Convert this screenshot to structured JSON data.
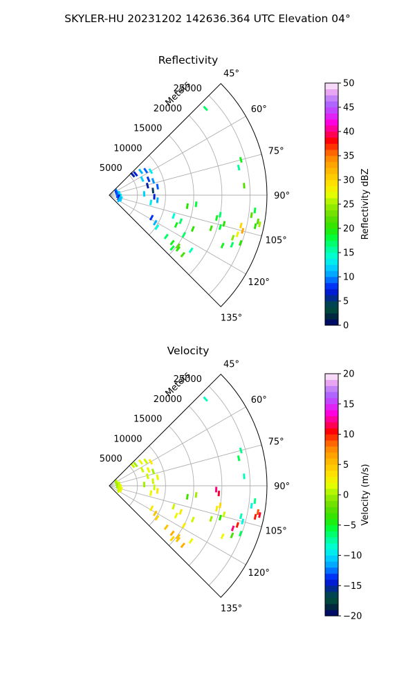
{
  "figure": {
    "suptitle": "SKYLER-HU  20231202  142636.364 UTC Elevation 04°"
  },
  "chart_data": [
    {
      "type": "scatter",
      "subtype": "polar-sector",
      "title": "Reflectivity",
      "range_label": "Meters",
      "azimuth_ticks": [
        "45°",
        "60°",
        "75°",
        "90°",
        "105°",
        "120°",
        "135°"
      ],
      "azimuth_range_deg": [
        45,
        135
      ],
      "range_ticks": [
        5000,
        10000,
        15000,
        20000,
        25000
      ],
      "range_max": 28000,
      "grid": true,
      "colorbar": {
        "label": "Reflectivity dBZ",
        "min": 0,
        "max": 50,
        "ticks": [
          "0",
          "5",
          "10",
          "15",
          "20",
          "25",
          "30",
          "35",
          "40",
          "45",
          "50"
        ]
      },
      "cells": [
        {
          "az": 48,
          "r": 23000,
          "v": 17
        },
        {
          "az": 49,
          "r": 5500,
          "v": 6
        },
        {
          "az": 51,
          "r": 6000,
          "v": 7
        },
        {
          "az": 53,
          "r": 7000,
          "v": 11
        },
        {
          "az": 56,
          "r": 7800,
          "v": 9
        },
        {
          "az": 60,
          "r": 8500,
          "v": 13
        },
        {
          "az": 64,
          "r": 6500,
          "v": 12
        },
        {
          "az": 68,
          "r": 7500,
          "v": 8
        },
        {
          "az": 72,
          "r": 8200,
          "v": 10
        },
        {
          "az": 76,
          "r": 7000,
          "v": 6
        },
        {
          "az": 80,
          "r": 8700,
          "v": 9
        },
        {
          "az": 84,
          "r": 7800,
          "v": 5
        },
        {
          "az": 88,
          "r": 6200,
          "v": 12
        },
        {
          "az": 92,
          "r": 8000,
          "v": 7
        },
        {
          "az": 96,
          "r": 8600,
          "v": 11
        },
        {
          "az": 100,
          "r": 7500,
          "v": 13
        },
        {
          "az": 62,
          "r": 1500,
          "v": 10
        },
        {
          "az": 72,
          "r": 1300,
          "v": 8
        },
        {
          "az": 82,
          "r": 1800,
          "v": 12
        },
        {
          "az": 90,
          "r": 1400,
          "v": 9
        },
        {
          "az": 96,
          "r": 2000,
          "v": 13
        },
        {
          "az": 102,
          "r": 1700,
          "v": 7
        },
        {
          "az": 108,
          "r": 2200,
          "v": 12
        },
        {
          "az": 114,
          "r": 1900,
          "v": 11
        },
        {
          "az": 118,
          "r": 8500,
          "v": 8
        },
        {
          "az": 121,
          "r": 9500,
          "v": 11
        },
        {
          "az": 124,
          "r": 10200,
          "v": 14
        },
        {
          "az": 126,
          "r": 12500,
          "v": 17
        },
        {
          "az": 127,
          "r": 14000,
          "v": 19
        },
        {
          "az": 128,
          "r": 15500,
          "v": 20
        },
        {
          "az": 129,
          "r": 16800,
          "v": 21
        },
        {
          "az": 130,
          "r": 14600,
          "v": 18
        },
        {
          "az": 126.5,
          "r": 15200,
          "v": 22
        },
        {
          "az": 124,
          "r": 17500,
          "v": 15
        },
        {
          "az": 118,
          "r": 15000,
          "v": 17
        },
        {
          "az": 112,
          "r": 16000,
          "v": 20
        },
        {
          "az": 100,
          "r": 20000,
          "v": 17
        },
        {
          "az": 102,
          "r": 19500,
          "v": 19
        },
        {
          "az": 104,
          "r": 21000,
          "v": 20
        },
        {
          "az": 106,
          "r": 20500,
          "v": 18
        },
        {
          "az": 108,
          "r": 19000,
          "v": 21
        },
        {
          "az": 103,
          "r": 24000,
          "v": 30
        },
        {
          "az": 105,
          "r": 24500,
          "v": 33
        },
        {
          "az": 107,
          "r": 23800,
          "v": 28
        },
        {
          "az": 109,
          "r": 23200,
          "v": 24
        },
        {
          "az": 110,
          "r": 24800,
          "v": 20
        },
        {
          "az": 112,
          "r": 23500,
          "v": 17
        },
        {
          "az": 114,
          "r": 22000,
          "v": 19
        },
        {
          "az": 100,
          "r": 26800,
          "v": 22
        },
        {
          "az": 101,
          "r": 27200,
          "v": 25
        },
        {
          "az": 102,
          "r": 26500,
          "v": 20
        },
        {
          "az": 96,
          "r": 26000,
          "v": 18
        },
        {
          "az": 98,
          "r": 25500,
          "v": 22
        },
        {
          "az": 86,
          "r": 24000,
          "v": 22
        },
        {
          "az": 78,
          "r": 23500,
          "v": 16
        },
        {
          "az": 75,
          "r": 24200,
          "v": 19
        },
        {
          "az": 108,
          "r": 12000,
          "v": 14
        },
        {
          "az": 110,
          "r": 13500,
          "v": 17
        },
        {
          "az": 114,
          "r": 13000,
          "v": 19
        },
        {
          "az": 98,
          "r": 14000,
          "v": 20
        },
        {
          "az": 96,
          "r": 15500,
          "v": 18
        }
      ]
    },
    {
      "type": "scatter",
      "subtype": "polar-sector",
      "title": "Velocity",
      "range_label": "Meters",
      "azimuth_ticks": [
        "45°",
        "60°",
        "75°",
        "90°",
        "105°",
        "120°",
        "135°"
      ],
      "azimuth_range_deg": [
        45,
        135
      ],
      "range_ticks": [
        5000,
        10000,
        15000,
        20000,
        25000
      ],
      "range_max": 28000,
      "grid": true,
      "colorbar": {
        "label": "Velocity (m/s)",
        "min": -20,
        "max": 20,
        "ticks": [
          "−20",
          "−15",
          "−10",
          "−5",
          "0",
          "5",
          "10",
          "15",
          "20"
        ]
      },
      "cells": [
        {
          "az": 48,
          "r": 23000,
          "v": -8
        },
        {
          "az": 49,
          "r": 5500,
          "v": 1
        },
        {
          "az": 51,
          "r": 6000,
          "v": 0
        },
        {
          "az": 53,
          "r": 7000,
          "v": 2
        },
        {
          "az": 56,
          "r": 7800,
          "v": 1
        },
        {
          "az": 60,
          "r": 8500,
          "v": 3
        },
        {
          "az": 64,
          "r": 6500,
          "v": 1
        },
        {
          "az": 68,
          "r": 7500,
          "v": 2
        },
        {
          "az": 72,
          "r": 8200,
          "v": 0
        },
        {
          "az": 76,
          "r": 7000,
          "v": 1
        },
        {
          "az": 80,
          "r": 8700,
          "v": 2
        },
        {
          "az": 84,
          "r": 7800,
          "v": 1
        },
        {
          "az": 88,
          "r": 6200,
          "v": 0
        },
        {
          "az": 92,
          "r": 8000,
          "v": 1
        },
        {
          "az": 96,
          "r": 8600,
          "v": 3
        },
        {
          "az": 100,
          "r": 7500,
          "v": 2
        },
        {
          "az": 62,
          "r": 1500,
          "v": 1
        },
        {
          "az": 72,
          "r": 1300,
          "v": 0
        },
        {
          "az": 82,
          "r": 1800,
          "v": 1
        },
        {
          "az": 90,
          "r": 1400,
          "v": 0
        },
        {
          "az": 96,
          "r": 2000,
          "v": 2
        },
        {
          "az": 102,
          "r": 1700,
          "v": 1
        },
        {
          "az": 108,
          "r": 2200,
          "v": 2
        },
        {
          "az": 114,
          "r": 1900,
          "v": 1
        },
        {
          "az": 118,
          "r": 8500,
          "v": 3
        },
        {
          "az": 121,
          "r": 9500,
          "v": 5
        },
        {
          "az": 124,
          "r": 10200,
          "v": 4
        },
        {
          "az": 126,
          "r": 12500,
          "v": 5
        },
        {
          "az": 127,
          "r": 14000,
          "v": 6
        },
        {
          "az": 128,
          "r": 15500,
          "v": 5
        },
        {
          "az": 129,
          "r": 16800,
          "v": 6
        },
        {
          "az": 130,
          "r": 14600,
          "v": 4
        },
        {
          "az": 126.5,
          "r": 15200,
          "v": 5
        },
        {
          "az": 124,
          "r": 17500,
          "v": 2
        },
        {
          "az": 118,
          "r": 15000,
          "v": 3
        },
        {
          "az": 112,
          "r": 16000,
          "v": 1
        },
        {
          "az": 92,
          "r": 19000,
          "v": 12
        },
        {
          "az": 94,
          "r": 19500,
          "v": 11
        },
        {
          "az": 100,
          "r": 20000,
          "v": 4
        },
        {
          "az": 102,
          "r": 19500,
          "v": 3
        },
        {
          "az": 104,
          "r": 21000,
          "v": 1
        },
        {
          "az": 106,
          "r": 20500,
          "v": -4
        },
        {
          "az": 108,
          "r": 19000,
          "v": 0
        },
        {
          "az": 103,
          "r": 24000,
          "v": -8
        },
        {
          "az": 105,
          "r": 24500,
          "v": -9
        },
        {
          "az": 107,
          "r": 23800,
          "v": 10
        },
        {
          "az": 109,
          "r": 23200,
          "v": 12
        },
        {
          "az": 110,
          "r": 24800,
          "v": -6
        },
        {
          "az": 112,
          "r": 23500,
          "v": -3
        },
        {
          "az": 114,
          "r": 22000,
          "v": 2
        },
        {
          "az": 100,
          "r": 26800,
          "v": 9
        },
        {
          "az": 101,
          "r": 27200,
          "v": 11
        },
        {
          "az": 102,
          "r": 26500,
          "v": 10
        },
        {
          "az": 96,
          "r": 26000,
          "v": -7
        },
        {
          "az": 98,
          "r": 25500,
          "v": -9
        },
        {
          "az": 86,
          "r": 24000,
          "v": -8
        },
        {
          "az": 78,
          "r": 23500,
          "v": -6
        },
        {
          "az": 75,
          "r": 24200,
          "v": -7
        },
        {
          "az": 108,
          "r": 12000,
          "v": 1
        },
        {
          "az": 110,
          "r": 13500,
          "v": 3
        },
        {
          "az": 114,
          "r": 13000,
          "v": 2
        },
        {
          "az": 98,
          "r": 14000,
          "v": -3
        },
        {
          "az": 96,
          "r": 15500,
          "v": 0
        }
      ]
    }
  ]
}
